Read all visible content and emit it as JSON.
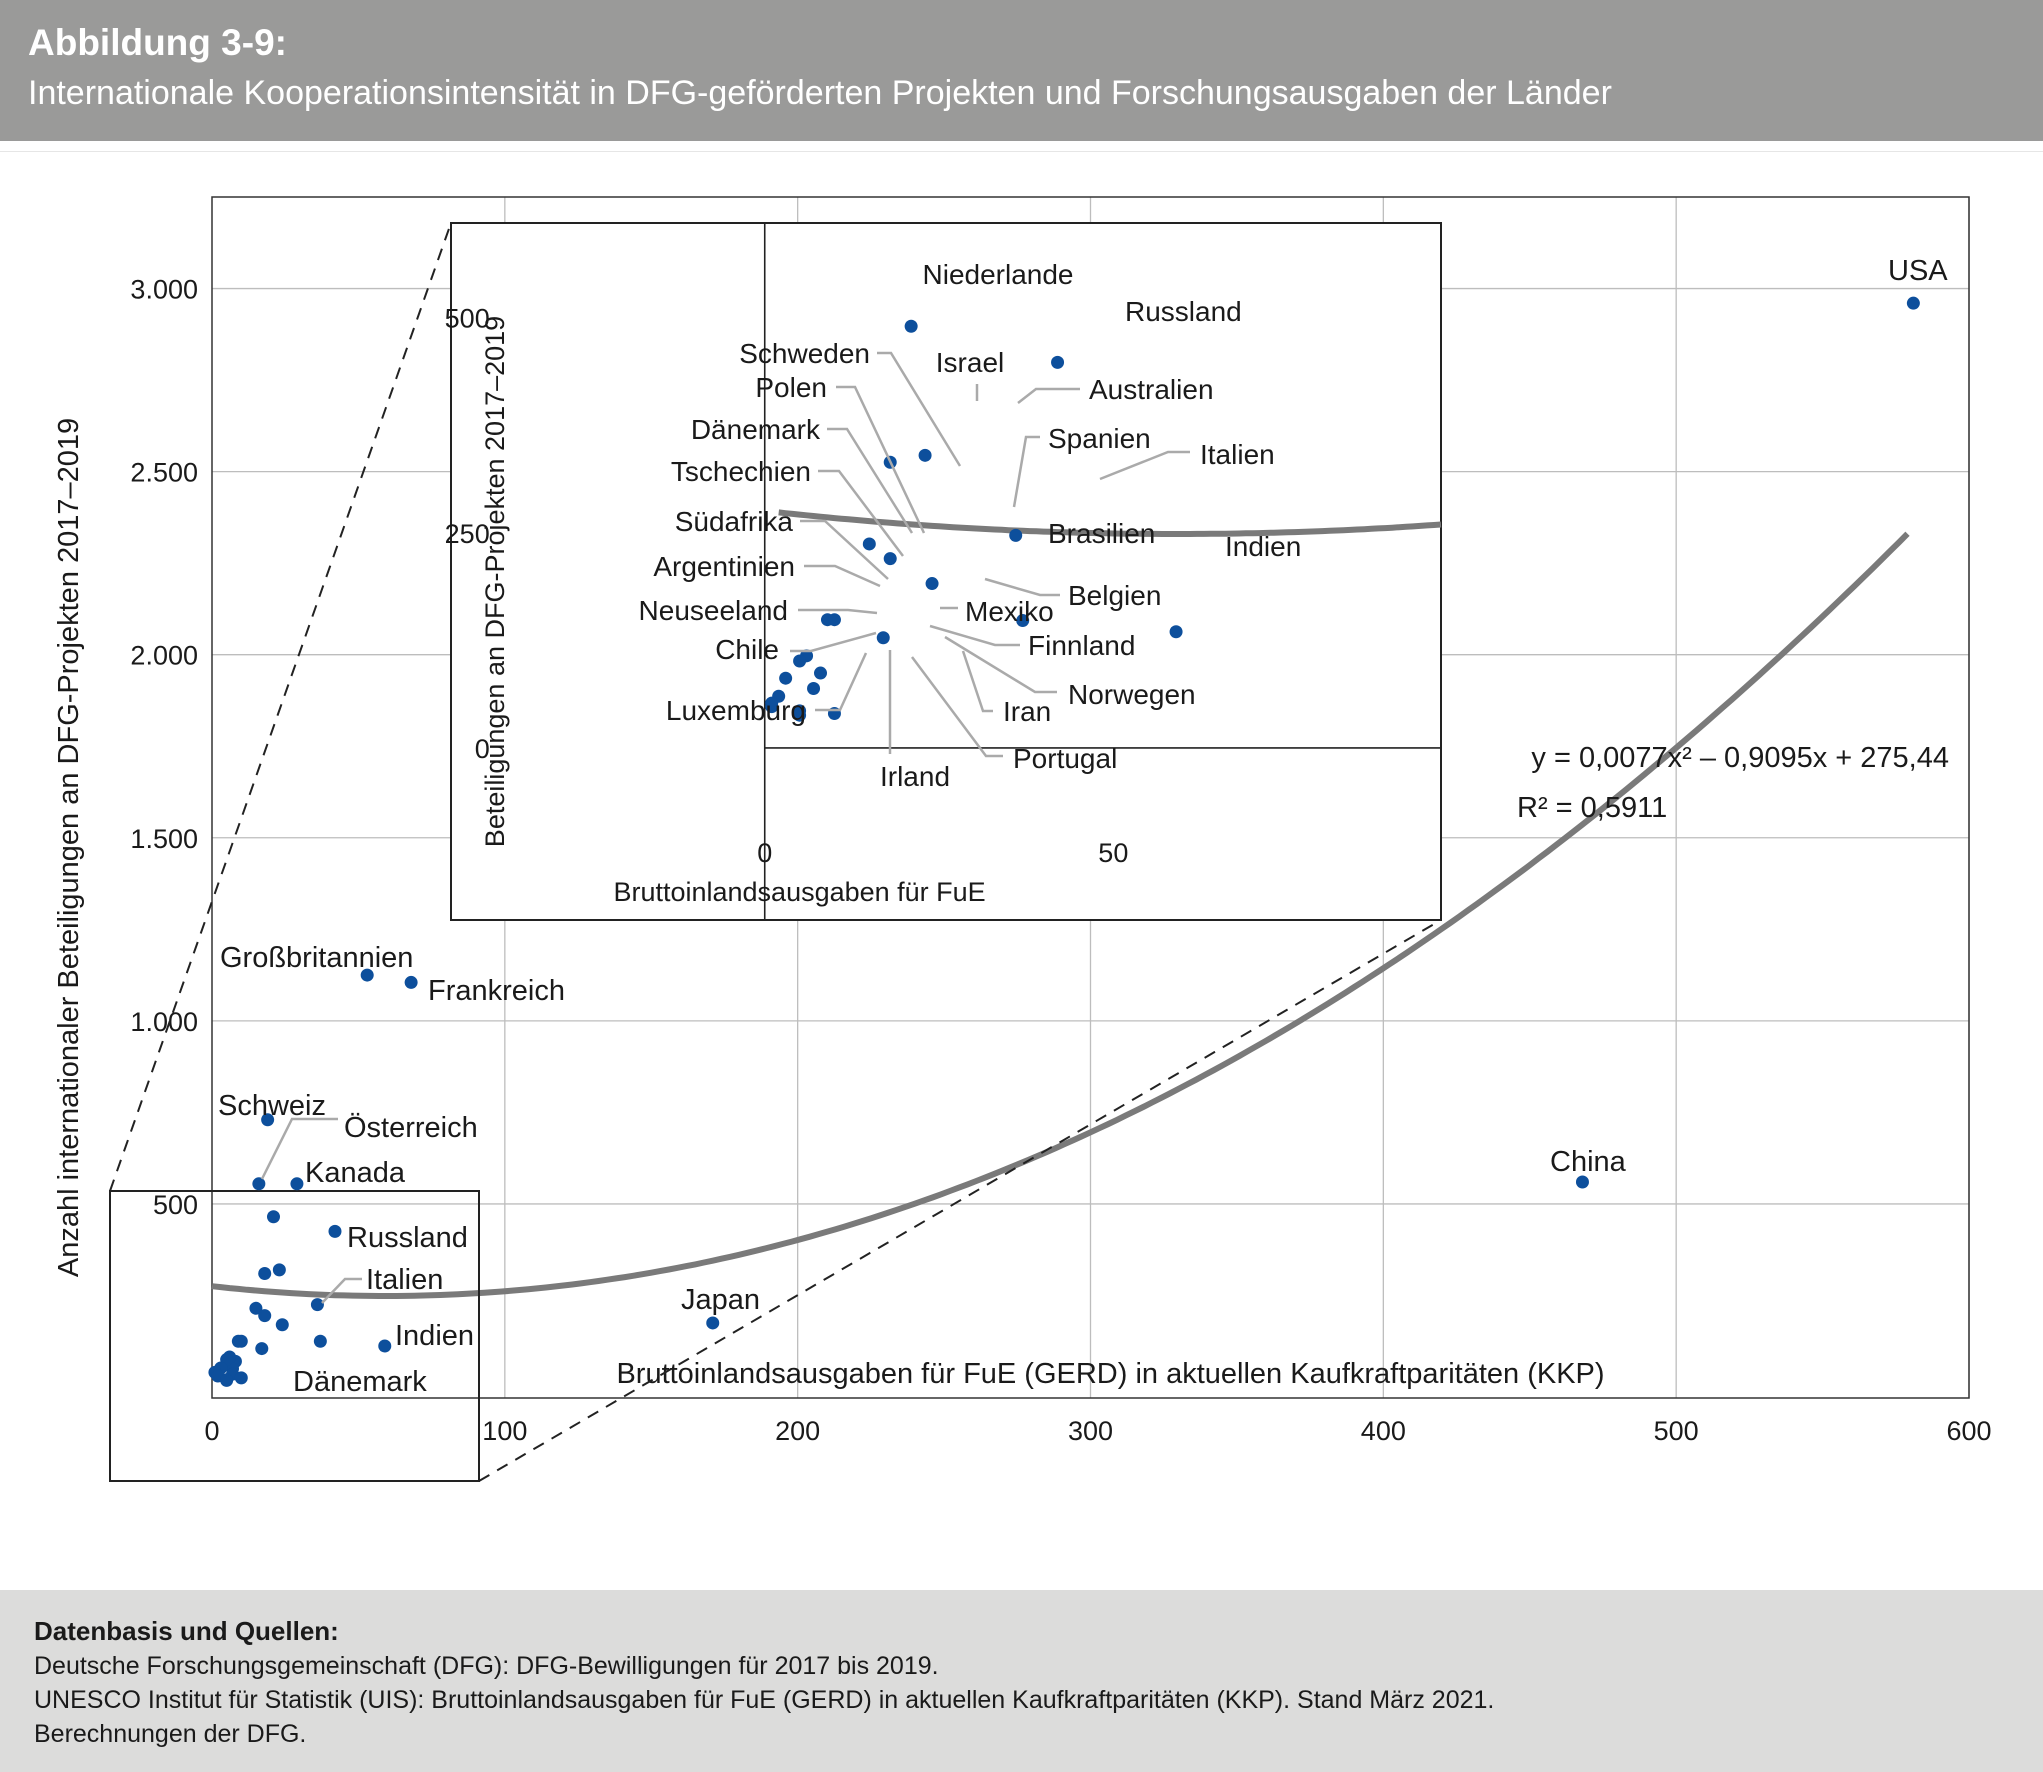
{
  "header": {
    "figure_label": "Abbildung 3-9:",
    "title": "Internationale Kooperationsintensität in DFG-geförderten Projekten und Forschungsausgaben der Länder"
  },
  "colors": {
    "header_bg": "#9a9a99",
    "footer_bg": "#dcdcdb",
    "point": "#0d4f9c",
    "trend_line": "#7a7a7a",
    "grid": "#bdbdbd"
  },
  "chart_data": [
    {
      "type": "scatter",
      "xlabel": "Bruttoinlandsausgaben für FuE (GERD) in aktuellen Kaufkraftparitäten (KKP)",
      "ylabel": "Anzahl internationaler Beteiligungen an DFG-Projekten 2017–2019",
      "xlim": [
        0,
        600
      ],
      "ylim": [
        -30,
        3250
      ],
      "xticks": [
        0,
        100,
        200,
        300,
        400,
        500,
        600
      ],
      "xtick_labels": [
        "0",
        "100",
        "200",
        "300",
        "400",
        "500",
        "600"
      ],
      "yticks": [
        500,
        1000,
        1500,
        2000,
        2500,
        3000
      ],
      "ytick_labels": [
        "500",
        "1.000",
        "1.500",
        "2.000",
        "2.500",
        "3.000"
      ],
      "grid": true,
      "trend_equation": "y = 0,0077x² – 0,9095x + 275,44",
      "r_squared": "R² = 0,5911",
      "trend": {
        "a": 0.0077,
        "b": -0.9095,
        "c": 275.44,
        "x_range": [
          0,
          581
        ]
      },
      "points": [
        {
          "label": "USA",
          "x": 581,
          "y": 2960
        },
        {
          "label": "China",
          "x": 468,
          "y": 560
        },
        {
          "label": "Japan",
          "x": 171,
          "y": 175
        },
        {
          "label": "Großbritannien",
          "x": 53,
          "y": 1125
        },
        {
          "label": "Frankreich",
          "x": 68,
          "y": 1105
        },
        {
          "label": "Schweiz",
          "x": 19,
          "y": 730
        },
        {
          "label": "Österreich",
          "x": 16,
          "y": 555
        },
        {
          "label": "Kanada",
          "x": 29,
          "y": 555
        },
        {
          "label": "Niederlande",
          "x": 21,
          "y": 465
        },
        {
          "label": "Russland",
          "x": 42,
          "y": 425
        },
        {
          "label": "Israel",
          "x": 18,
          "y": 310
        },
        {
          "label": "Australien",
          "x": 23,
          "y": 320
        },
        {
          "label": "Italien",
          "x": 36,
          "y": 225
        },
        {
          "label": "Indien",
          "x": 59,
          "y": 112
        },
        {
          "label": "Spanien",
          "x": 24,
          "y": 170
        },
        {
          "label": "Schweden",
          "x": 15,
          "y": 215
        },
        {
          "label": "Polen",
          "x": 18,
          "y": 195
        },
        {
          "label": "Brasilien",
          "x": 37,
          "y": 125
        },
        {
          "label": "Belgien",
          "x": 17,
          "y": 105
        },
        {
          "label": "Dänemark",
          "x": 9,
          "y": 125
        },
        {
          "label": "Tschechien",
          "x": 10,
          "y": 125
        },
        {
          "label": "Mexiko",
          "x": 8,
          "y": 70
        },
        {
          "label": "Südafrika",
          "x": 6,
          "y": 82
        },
        {
          "label": "Finnland",
          "x": 7,
          "y": 50
        },
        {
          "label": "Argentinien",
          "x": 5,
          "y": 75
        },
        {
          "label": "Norwegen",
          "x": 7,
          "y": 35
        },
        {
          "label": "Neuseeland",
          "x": 3,
          "y": 52
        },
        {
          "label": "Iran",
          "x": 10,
          "y": 25
        },
        {
          "label": "Chile",
          "x": 1,
          "y": 40
        },
        {
          "label": "Portugal",
          "x": 5,
          "y": 20
        },
        {
          "label": "Luxemburg",
          "x": 2,
          "y": 30
        },
        {
          "label": "Irland",
          "x": 5,
          "y": 18
        }
      ],
      "labeled_points": [
        "USA",
        "China",
        "Japan",
        "Großbritannien",
        "Frankreich",
        "Schweiz",
        "Österreich",
        "Kanada",
        "Russland",
        "Italien",
        "Indien",
        "Dänemark"
      ]
    },
    {
      "type": "scatter",
      "title": "",
      "xlabel": "Bruttoinlandsausgaben für FuE",
      "ylabel": "Beteiligungen an DFG-Projekten 2017–2019",
      "xlim": [
        -45,
        97
      ],
      "ylim": [
        -200,
        610
      ],
      "xticks": [
        0,
        50
      ],
      "xtick_labels": [
        "0",
        "50"
      ],
      "yticks": [
        0,
        250,
        500
      ],
      "ytick_labels": [
        "0",
        "250",
        "500"
      ],
      "grid": false,
      "points": [
        {
          "label": "Niederlande",
          "x": 21,
          "y": 490
        },
        {
          "label": "Russland",
          "x": 42,
          "y": 448
        },
        {
          "label": "Israel",
          "x": 18,
          "y": 332
        },
        {
          "label": "Australien",
          "x": 23,
          "y": 340
        },
        {
          "label": "Italien",
          "x": 36,
          "y": 247
        },
        {
          "label": "Spanien",
          "x": 24,
          "y": 191
        },
        {
          "label": "Indien",
          "x": 59,
          "y": 135
        },
        {
          "label": "Schweden",
          "x": 15,
          "y": 237
        },
        {
          "label": "Polen",
          "x": 18,
          "y": 220
        },
        {
          "label": "Brasilien",
          "x": 37,
          "y": 148
        },
        {
          "label": "Belgien",
          "x": 17,
          "y": 128
        },
        {
          "label": "Dänemark",
          "x": 9,
          "y": 149
        },
        {
          "label": "Tschechien",
          "x": 10,
          "y": 149
        },
        {
          "label": "Mexiko",
          "x": 8,
          "y": 87
        },
        {
          "label": "Südafrika",
          "x": 6,
          "y": 107
        },
        {
          "label": "Finnland",
          "x": 7,
          "y": 69
        },
        {
          "label": "Argentinien",
          "x": 5,
          "y": 101
        },
        {
          "label": "Norwegen",
          "x": 10,
          "y": 40
        },
        {
          "label": "Neuseeland",
          "x": 3,
          "y": 81
        },
        {
          "label": "Iran",
          "x": 5,
          "y": 43
        },
        {
          "label": "Chile",
          "x": 1,
          "y": 48
        },
        {
          "label": "Portugal",
          "x": 5,
          "y": 38
        },
        {
          "label": "Luxemburg",
          "x": 2,
          "y": 60
        },
        {
          "label": "Irland",
          "x": 1,
          "y": 52
        }
      ]
    }
  ],
  "sources": {
    "heading": "Datenbasis und Quellen:",
    "lines": [
      "Deutsche Forschungsgemeinschaft (DFG): DFG-Bewilligungen für 2017 bis 2019.",
      "UNESCO Institut für Statistik (UIS): Bruttoinlandsausgaben für FuE (GERD) in aktuellen Kaufkraftparitäten (KKP). Stand März 2021.",
      "Berechnungen der DFG."
    ]
  }
}
